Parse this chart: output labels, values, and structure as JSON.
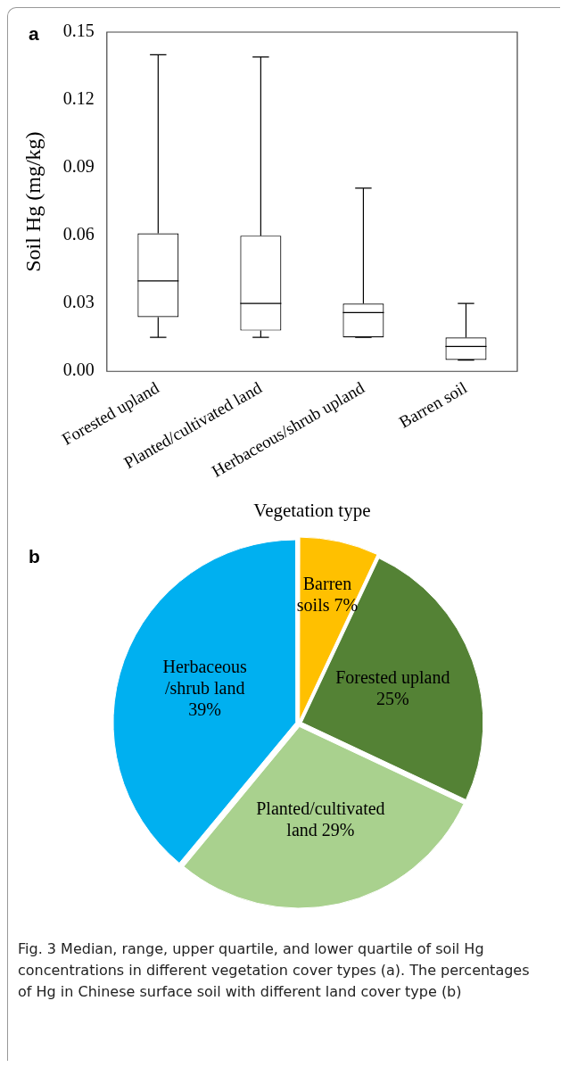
{
  "chart_data": [
    {
      "type": "box",
      "title": "a",
      "xlabel": "Vegetation type",
      "ylabel": "Soil Hg (mg/kg)",
      "categories": [
        "Forested upland",
        "Planted/cultivated land",
        "Herbaceous/shrub upland",
        "Barren soil"
      ],
      "boxes": [
        {
          "low": 0.015,
          "q1": 0.024,
          "median": 0.04,
          "q3": 0.061,
          "high": 0.14
        },
        {
          "low": 0.015,
          "q1": 0.018,
          "median": 0.03,
          "q3": 0.06,
          "high": 0.139
        },
        {
          "low": 0.015,
          "q1": 0.015,
          "median": 0.026,
          "q3": 0.03,
          "high": 0.081
        },
        {
          "low": 0.005,
          "q1": 0.005,
          "median": 0.011,
          "q3": 0.015,
          "high": 0.03
        }
      ],
      "ylim": [
        0,
        0.15
      ],
      "yticks": [
        {
          "value": 0,
          "label": "0.00"
        },
        {
          "value": 0.03,
          "label": "0.03"
        },
        {
          "value": 0.06,
          "label": "0.06"
        },
        {
          "value": 0.09,
          "label": "0.09"
        },
        {
          "value": 0.12,
          "label": "0.12"
        },
        {
          "value": 0.15,
          "label": "0.15"
        }
      ],
      "grid": false,
      "legend": false
    },
    {
      "type": "pie",
      "title": "b",
      "categories": [
        "Barren soils",
        "Forested upland",
        "Planted/cultivated land",
        "Herbaceous /shrub land"
      ],
      "values": [
        7,
        25,
        29,
        39
      ],
      "colors": [
        "#ffc000",
        "#548235",
        "#a9d18e",
        "#00b0f0"
      ],
      "value_labels": [
        "7%",
        "25%",
        "29%",
        "39%"
      ],
      "legend": false,
      "annotations": [
        "Fig. 3 Median, range, upper quartile, and lower quartile of soil Hg concentrations in different vegetation cover types (a). The percentages of Hg in Chinese surface soil with different land cover type (b)"
      ]
    }
  ]
}
